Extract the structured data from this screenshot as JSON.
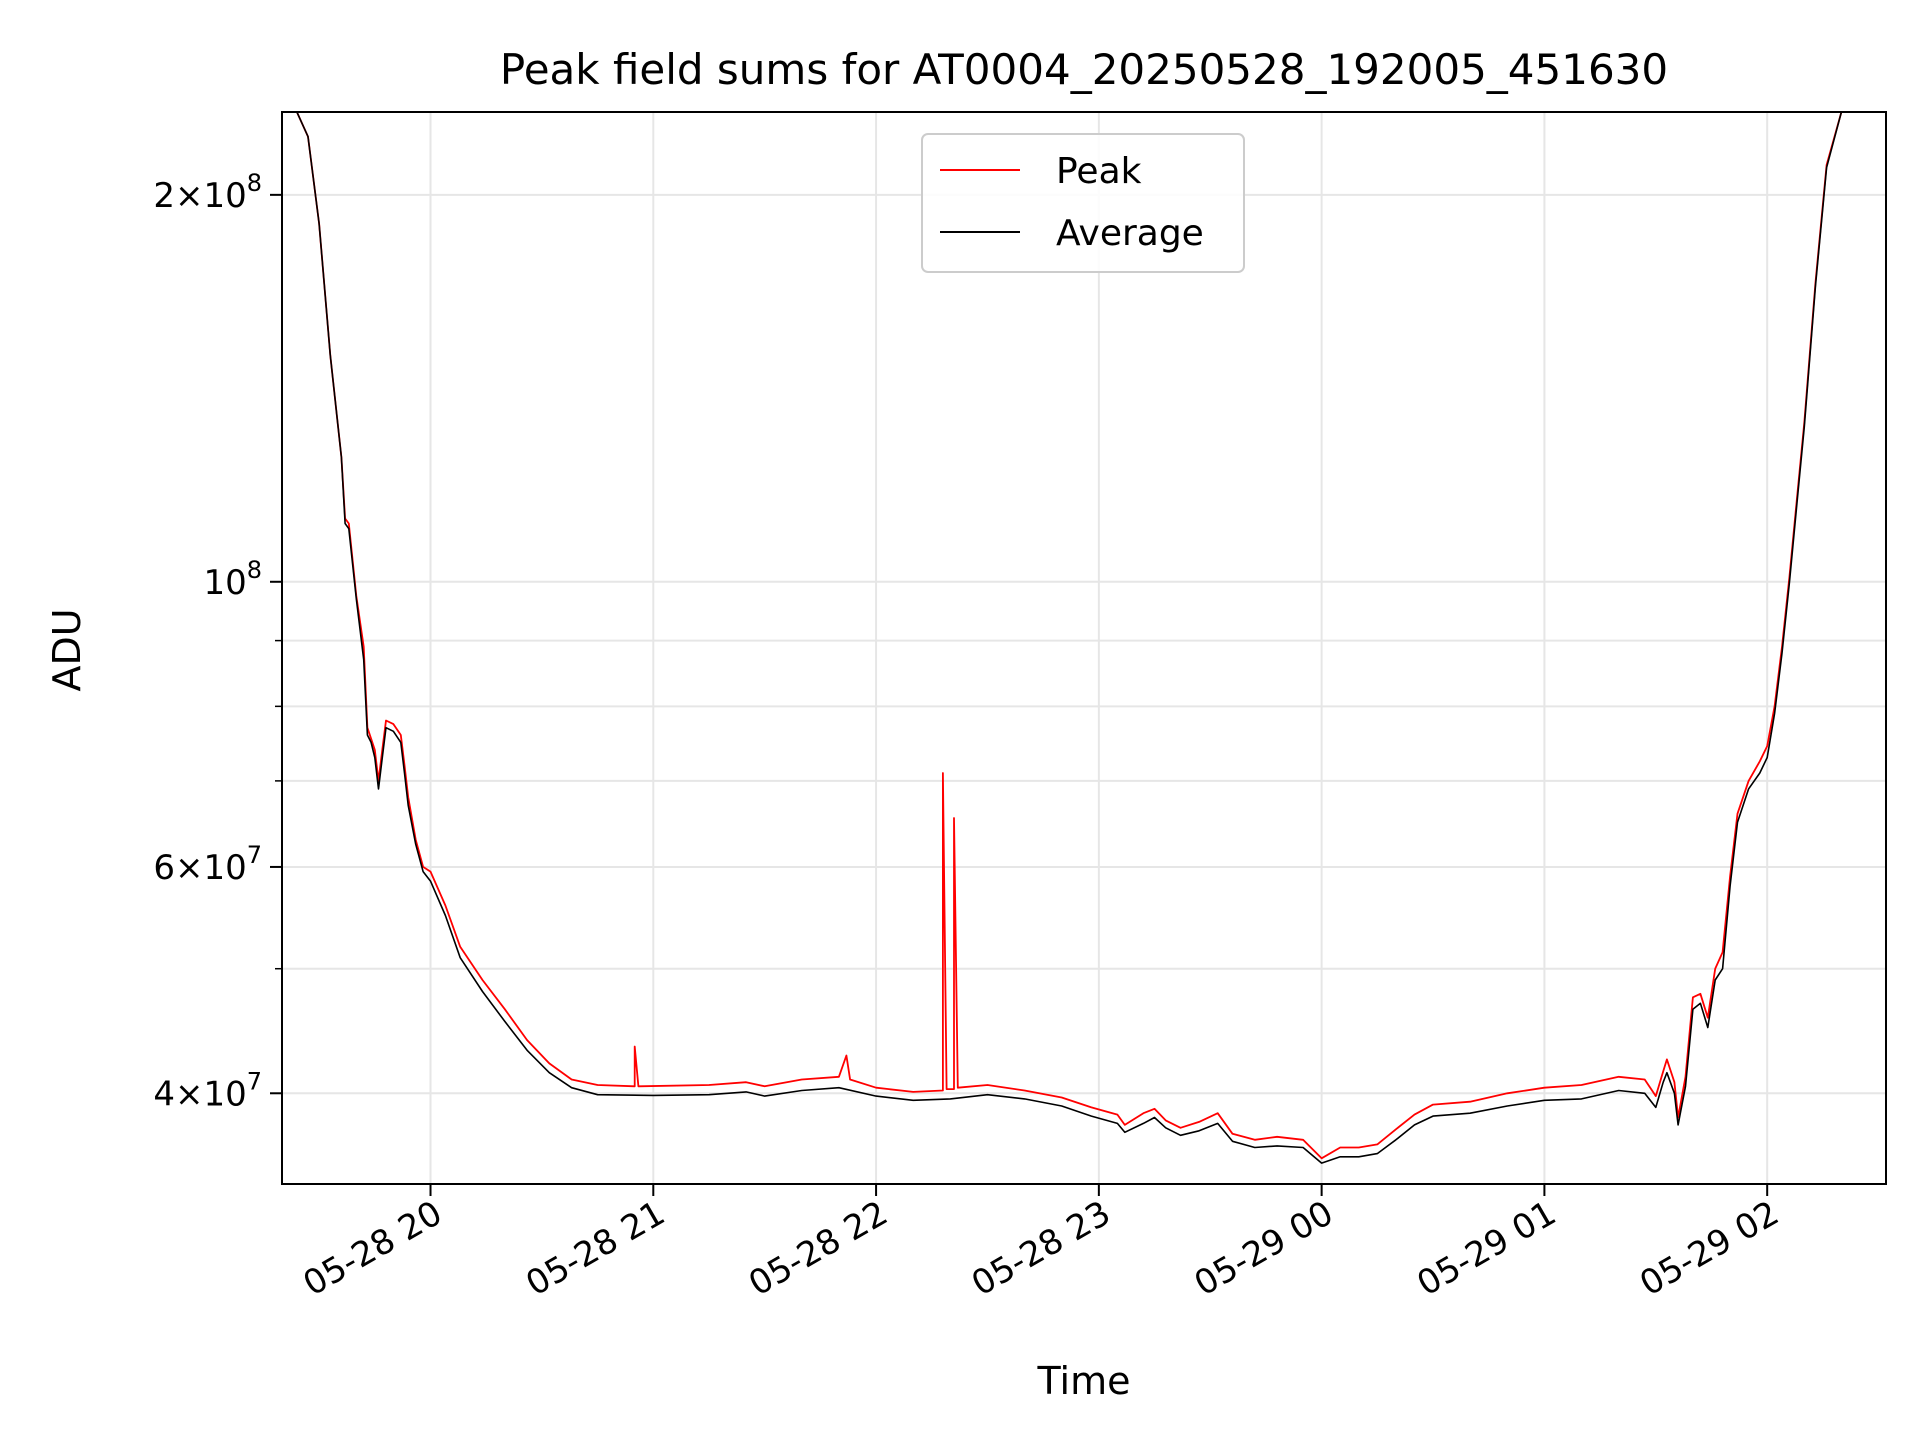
{
  "chart_data": {
    "type": "line",
    "title": "Peak field sums for AT0004_20250528_192005_451630",
    "xlabel": "Time",
    "ylabel": "ADU",
    "yscale": "log",
    "ylim": [
      34000000,
      232000000
    ],
    "xlim": [
      "2025-05-28 19:20",
      "2025-05-29 02:32"
    ],
    "grid": true,
    "legend_position": "upper center",
    "x_ticks": [
      {
        "value": "2025-05-28 20:00",
        "label": "05-28 20"
      },
      {
        "value": "2025-05-28 21:00",
        "label": "05-28 21"
      },
      {
        "value": "2025-05-28 22:00",
        "label": "05-28 22"
      },
      {
        "value": "2025-05-28 23:00",
        "label": "05-28 23"
      },
      {
        "value": "2025-05-29 00:00",
        "label": "05-29 00"
      },
      {
        "value": "2025-05-29 01:00",
        "label": "05-29 01"
      },
      {
        "value": "2025-05-29 02:00",
        "label": "05-29 02"
      }
    ],
    "y_ticks": [
      {
        "value": 200000000,
        "mant": "2",
        "exp": "8"
      },
      {
        "value": 100000000,
        "mant": "",
        "exp": "8"
      },
      {
        "value": 60000000,
        "mant": "6",
        "exp": "7"
      },
      {
        "value": 40000000,
        "mant": "4",
        "exp": "7"
      }
    ],
    "y_minor_ticks": [
      50000000,
      70000000,
      80000000,
      90000000
    ],
    "series": [
      {
        "name": "Average",
        "color": "#000000",
        "points": [
          [
            "2025-05-28 19:20",
            232000000
          ],
          [
            "2025-05-28 19:24",
            232000000
          ],
          [
            "2025-05-28 19:27",
            222000000
          ],
          [
            "2025-05-28 19:30",
            190000000
          ],
          [
            "2025-05-28 19:33",
            150000000
          ],
          [
            "2025-05-28 19:36",
            125000000
          ],
          [
            "2025-05-28 19:37",
            111000000
          ],
          [
            "2025-05-28 19:38",
            110000000
          ],
          [
            "2025-05-28 19:40",
            97000000
          ],
          [
            "2025-05-28 19:42",
            87000000
          ],
          [
            "2025-05-28 19:43",
            76000000
          ],
          [
            "2025-05-28 19:44",
            75000000
          ],
          [
            "2025-05-28 19:45",
            73000000
          ],
          [
            "2025-05-28 19:46",
            69000000
          ],
          [
            "2025-05-28 19:47",
            73000000
          ],
          [
            "2025-05-28 19:48",
            77000000
          ],
          [
            "2025-05-28 19:50",
            76500000
          ],
          [
            "2025-05-28 19:52",
            75000000
          ],
          [
            "2025-05-28 19:53",
            71000000
          ],
          [
            "2025-05-28 19:54",
            67000000
          ],
          [
            "2025-05-28 19:56",
            62500000
          ],
          [
            "2025-05-28 19:58",
            59500000
          ],
          [
            "2025-05-28 20:00",
            58500000
          ],
          [
            "2025-05-28 20:04",
            55000000
          ],
          [
            "2025-05-28 20:08",
            51000000
          ],
          [
            "2025-05-28 20:14",
            48000000
          ],
          [
            "2025-05-28 20:20",
            45500000
          ],
          [
            "2025-05-28 20:26",
            43200000
          ],
          [
            "2025-05-28 20:32",
            41500000
          ],
          [
            "2025-05-28 20:38",
            40400000
          ],
          [
            "2025-05-28 20:45",
            39900000
          ],
          [
            "2025-05-28 21:00",
            39850000
          ],
          [
            "2025-05-28 21:15",
            39900000
          ],
          [
            "2025-05-28 21:25",
            40100000
          ],
          [
            "2025-05-28 21:30",
            39800000
          ],
          [
            "2025-05-28 21:40",
            40200000
          ],
          [
            "2025-05-28 21:50",
            40400000
          ],
          [
            "2025-05-28 22:00",
            39800000
          ],
          [
            "2025-05-28 22:10",
            39500000
          ],
          [
            "2025-05-28 22:20",
            39600000
          ],
          [
            "2025-05-28 22:30",
            39900000
          ],
          [
            "2025-05-28 22:40",
            39600000
          ],
          [
            "2025-05-28 22:50",
            39100000
          ],
          [
            "2025-05-28 22:58",
            38400000
          ],
          [
            "2025-05-28 23:05",
            37900000
          ],
          [
            "2025-05-28 23:07",
            37300000
          ],
          [
            "2025-05-28 23:12",
            37900000
          ],
          [
            "2025-05-28 23:15",
            38300000
          ],
          [
            "2025-05-28 23:18",
            37600000
          ],
          [
            "2025-05-28 23:22",
            37100000
          ],
          [
            "2025-05-28 23:27",
            37400000
          ],
          [
            "2025-05-28 23:32",
            37900000
          ],
          [
            "2025-05-28 23:36",
            36700000
          ],
          [
            "2025-05-28 23:42",
            36300000
          ],
          [
            "2025-05-28 23:48",
            36400000
          ],
          [
            "2025-05-28 23:55",
            36300000
          ],
          [
            "2025-05-29 00:00",
            35300000
          ],
          [
            "2025-05-29 00:05",
            35700000
          ],
          [
            "2025-05-29 00:10",
            35700000
          ],
          [
            "2025-05-29 00:15",
            35900000
          ],
          [
            "2025-05-29 00:20",
            36800000
          ],
          [
            "2025-05-29 00:25",
            37800000
          ],
          [
            "2025-05-29 00:30",
            38400000
          ],
          [
            "2025-05-29 00:40",
            38600000
          ],
          [
            "2025-05-29 00:50",
            39100000
          ],
          [
            "2025-05-29 01:00",
            39500000
          ],
          [
            "2025-05-29 01:10",
            39600000
          ],
          [
            "2025-05-29 01:20",
            40200000
          ],
          [
            "2025-05-29 01:27",
            40000000
          ],
          [
            "2025-05-29 01:30",
            39000000
          ],
          [
            "2025-05-29 01:32",
            40800000
          ],
          [
            "2025-05-29 01:33",
            41500000
          ],
          [
            "2025-05-29 01:35",
            40000000
          ],
          [
            "2025-05-29 01:36",
            37800000
          ],
          [
            "2025-05-29 01:38",
            40500000
          ],
          [
            "2025-05-29 01:40",
            46500000
          ],
          [
            "2025-05-29 01:42",
            47000000
          ],
          [
            "2025-05-29 01:44",
            45000000
          ],
          [
            "2025-05-29 01:46",
            49000000
          ],
          [
            "2025-05-29 01:48",
            50000000
          ],
          [
            "2025-05-29 01:50",
            58000000
          ],
          [
            "2025-05-29 01:52",
            65000000
          ],
          [
            "2025-05-29 01:55",
            69000000
          ],
          [
            "2025-05-29 01:58",
            71000000
          ],
          [
            "2025-05-29 02:00",
            73000000
          ],
          [
            "2025-05-29 02:02",
            79000000
          ],
          [
            "2025-05-29 02:04",
            88000000
          ],
          [
            "2025-05-29 02:06",
            100000000
          ],
          [
            "2025-05-29 02:08",
            115000000
          ],
          [
            "2025-05-29 02:10",
            132000000
          ],
          [
            "2025-05-29 02:13",
            170000000
          ],
          [
            "2025-05-29 02:16",
            210000000
          ],
          [
            "2025-05-29 02:20",
            232000000
          ],
          [
            "2025-05-29 02:32",
            232000000
          ]
        ]
      },
      {
        "name": "Peak",
        "color": "#ff0000",
        "points": [
          [
            "2025-05-28 19:20",
            232000000
          ],
          [
            "2025-05-28 19:24",
            232000000
          ],
          [
            "2025-05-28 19:27",
            222000000
          ],
          [
            "2025-05-28 19:30",
            190000000
          ],
          [
            "2025-05-28 19:33",
            150000000
          ],
          [
            "2025-05-28 19:36",
            125000000
          ],
          [
            "2025-05-28 19:37",
            112000000
          ],
          [
            "2025-05-28 19:38",
            111000000
          ],
          [
            "2025-05-28 19:40",
            97500000
          ],
          [
            "2025-05-28 19:42",
            89000000
          ],
          [
            "2025-05-28 19:43",
            77000000
          ],
          [
            "2025-05-28 19:44",
            75500000
          ],
          [
            "2025-05-28 19:45",
            74000000
          ],
          [
            "2025-05-28 19:46",
            70000000
          ],
          [
            "2025-05-28 19:47",
            74000000
          ],
          [
            "2025-05-28 19:48",
            78000000
          ],
          [
            "2025-05-28 19:50",
            77500000
          ],
          [
            "2025-05-28 19:52",
            76000000
          ],
          [
            "2025-05-28 19:53",
            72000000
          ],
          [
            "2025-05-28 19:54",
            68000000
          ],
          [
            "2025-05-28 19:56",
            63000000
          ],
          [
            "2025-05-28 19:58",
            60000000
          ],
          [
            "2025-05-28 20:00",
            59500000
          ],
          [
            "2025-05-28 20:04",
            56000000
          ],
          [
            "2025-05-28 20:08",
            52000000
          ],
          [
            "2025-05-28 20:14",
            49000000
          ],
          [
            "2025-05-28 20:20",
            46500000
          ],
          [
            "2025-05-28 20:26",
            44000000
          ],
          [
            "2025-05-28 20:32",
            42200000
          ],
          [
            "2025-05-28 20:38",
            41000000
          ],
          [
            "2025-05-28 20:45",
            40600000
          ],
          [
            "2025-05-28 20:55",
            40500000
          ],
          [
            "2025-05-28 20:55",
            43500000
          ],
          [
            "2025-05-28 20:56",
            40500000
          ],
          [
            "2025-05-28 21:15",
            40600000
          ],
          [
            "2025-05-28 21:25",
            40800000
          ],
          [
            "2025-05-28 21:30",
            40500000
          ],
          [
            "2025-05-28 21:40",
            41000000
          ],
          [
            "2025-05-28 21:50",
            41200000
          ],
          [
            "2025-05-28 21:52",
            42800000
          ],
          [
            "2025-05-28 21:53",
            41000000
          ],
          [
            "2025-05-28 22:00",
            40400000
          ],
          [
            "2025-05-28 22:10",
            40100000
          ],
          [
            "2025-05-28 22:18",
            40200000
          ],
          [
            "2025-05-28 22:18",
            71000000
          ],
          [
            "2025-05-28 22:19",
            40300000
          ],
          [
            "2025-05-28 22:21",
            40300000
          ],
          [
            "2025-05-28 22:21",
            65500000
          ],
          [
            "2025-05-28 22:22",
            40400000
          ],
          [
            "2025-05-28 22:30",
            40600000
          ],
          [
            "2025-05-28 22:40",
            40200000
          ],
          [
            "2025-05-28 22:50",
            39700000
          ],
          [
            "2025-05-28 22:58",
            39000000
          ],
          [
            "2025-05-28 23:05",
            38500000
          ],
          [
            "2025-05-28 23:07",
            37800000
          ],
          [
            "2025-05-28 23:12",
            38600000
          ],
          [
            "2025-05-28 23:15",
            38900000
          ],
          [
            "2025-05-28 23:18",
            38100000
          ],
          [
            "2025-05-28 23:22",
            37600000
          ],
          [
            "2025-05-28 23:27",
            38000000
          ],
          [
            "2025-05-28 23:32",
            38600000
          ],
          [
            "2025-05-28 23:36",
            37200000
          ],
          [
            "2025-05-28 23:42",
            36800000
          ],
          [
            "2025-05-28 23:48",
            37000000
          ],
          [
            "2025-05-28 23:55",
            36800000
          ],
          [
            "2025-05-29 00:00",
            35600000
          ],
          [
            "2025-05-29 00:05",
            36300000
          ],
          [
            "2025-05-29 00:10",
            36300000
          ],
          [
            "2025-05-29 00:15",
            36500000
          ],
          [
            "2025-05-29 00:20",
            37500000
          ],
          [
            "2025-05-29 00:25",
            38500000
          ],
          [
            "2025-05-29 00:30",
            39200000
          ],
          [
            "2025-05-29 00:40",
            39400000
          ],
          [
            "2025-05-29 00:50",
            40000000
          ],
          [
            "2025-05-29 01:00",
            40400000
          ],
          [
            "2025-05-29 01:10",
            40600000
          ],
          [
            "2025-05-29 01:20",
            41200000
          ],
          [
            "2025-05-29 01:27",
            41000000
          ],
          [
            "2025-05-29 01:30",
            39800000
          ],
          [
            "2025-05-29 01:32",
            41600000
          ],
          [
            "2025-05-29 01:33",
            42500000
          ],
          [
            "2025-05-29 01:35",
            40800000
          ],
          [
            "2025-05-29 01:36",
            38300000
          ],
          [
            "2025-05-29 01:38",
            41200000
          ],
          [
            "2025-05-29 01:40",
            47500000
          ],
          [
            "2025-05-29 01:42",
            47800000
          ],
          [
            "2025-05-29 01:44",
            45800000
          ],
          [
            "2025-05-29 01:46",
            50000000
          ],
          [
            "2025-05-29 01:48",
            51500000
          ],
          [
            "2025-05-29 01:50",
            59000000
          ],
          [
            "2025-05-29 01:52",
            66000000
          ],
          [
            "2025-05-29 01:55",
            70000000
          ],
          [
            "2025-05-29 01:58",
            72500000
          ],
          [
            "2025-05-29 02:00",
            74500000
          ],
          [
            "2025-05-29 02:02",
            80000000
          ],
          [
            "2025-05-29 02:04",
            89000000
          ],
          [
            "2025-05-29 02:06",
            101000000
          ],
          [
            "2025-05-29 02:08",
            116000000
          ],
          [
            "2025-05-29 02:10",
            133000000
          ],
          [
            "2025-05-29 02:13",
            171000000
          ],
          [
            "2025-05-29 02:16",
            211000000
          ],
          [
            "2025-05-29 02:20",
            232000000
          ],
          [
            "2025-05-29 02:32",
            232000000
          ]
        ]
      }
    ],
    "legend": [
      {
        "label": "Peak",
        "color": "#ff0000"
      },
      {
        "label": "Average",
        "color": "#000000"
      }
    ]
  }
}
